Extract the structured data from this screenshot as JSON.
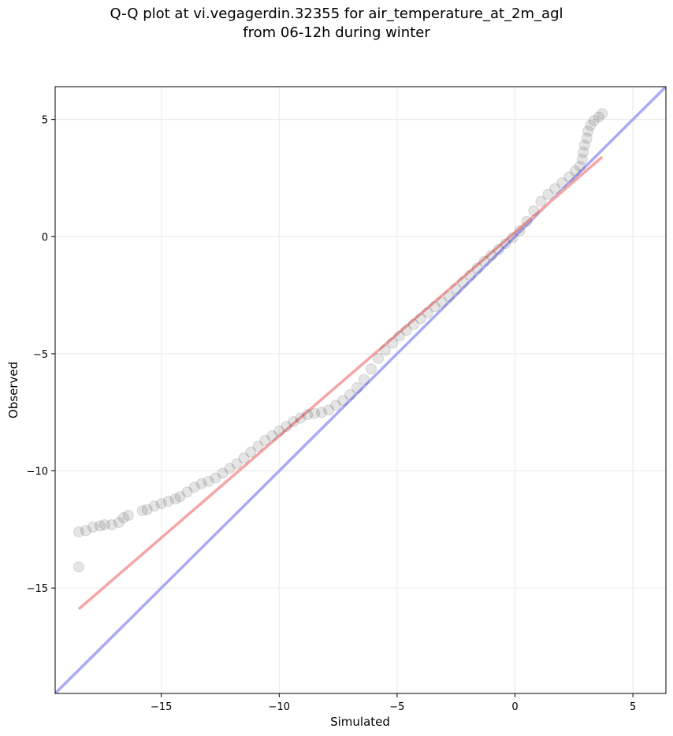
{
  "chart_data": {
    "type": "scatter",
    "title_line1": "Q-Q plot at vi.vegagerdin.32355 for air_temperature_at_2m_agl",
    "title_line2": "from 06-12h during winter",
    "xlabel": "Simulated",
    "ylabel": "Observed",
    "xlim": [
      -19.5,
      6.4
    ],
    "ylim": [
      -19.5,
      6.4
    ],
    "xticks": [
      -15,
      -10,
      -5,
      0,
      5
    ],
    "yticks": [
      5,
      0,
      -5,
      -10,
      -15
    ],
    "xticklabels": [
      "−15",
      "−10",
      "−5",
      "0",
      "5"
    ],
    "yticklabels": [
      "5",
      "0",
      "−5",
      "−10",
      "−15"
    ],
    "grid": true,
    "colors": {
      "points": "#000000",
      "identity_line": "#aaaaf5",
      "fit_line": "#f5a5a5",
      "grid": "#e8e8e8"
    },
    "identity_line": {
      "x": [
        -19.5,
        6.4
      ],
      "y": [
        -19.5,
        6.4
      ]
    },
    "fit_line": {
      "x": [
        -18.5,
        3.7
      ],
      "y": [
        -15.9,
        3.4
      ]
    },
    "series": [
      {
        "points": [
          [
            -18.5,
            -14.1
          ],
          [
            -18.5,
            -12.6
          ],
          [
            -18.2,
            -12.55
          ],
          [
            -17.9,
            -12.4
          ],
          [
            -17.6,
            -12.35
          ],
          [
            -17.4,
            -12.3
          ],
          [
            -17.1,
            -12.3
          ],
          [
            -16.8,
            -12.2
          ],
          [
            -16.6,
            -12.0
          ],
          [
            -16.4,
            -11.9
          ],
          [
            -15.8,
            -11.7
          ],
          [
            -15.6,
            -11.65
          ],
          [
            -15.3,
            -11.5
          ],
          [
            -15.0,
            -11.4
          ],
          [
            -14.7,
            -11.3
          ],
          [
            -14.4,
            -11.2
          ],
          [
            -14.2,
            -11.1
          ],
          [
            -13.9,
            -10.9
          ],
          [
            -13.6,
            -10.7
          ],
          [
            -13.3,
            -10.55
          ],
          [
            -13.0,
            -10.45
          ],
          [
            -12.7,
            -10.3
          ],
          [
            -12.4,
            -10.1
          ],
          [
            -12.1,
            -9.9
          ],
          [
            -11.8,
            -9.7
          ],
          [
            -11.5,
            -9.45
          ],
          [
            -11.2,
            -9.2
          ],
          [
            -10.9,
            -8.95
          ],
          [
            -10.6,
            -8.7
          ],
          [
            -10.3,
            -8.5
          ],
          [
            -10.0,
            -8.3
          ],
          [
            -9.7,
            -8.1
          ],
          [
            -9.4,
            -7.9
          ],
          [
            -9.1,
            -7.75
          ],
          [
            -8.8,
            -7.6
          ],
          [
            -8.5,
            -7.55
          ],
          [
            -8.2,
            -7.5
          ],
          [
            -7.9,
            -7.4
          ],
          [
            -7.6,
            -7.2
          ],
          [
            -7.3,
            -7.0
          ],
          [
            -7.0,
            -6.75
          ],
          [
            -6.7,
            -6.45
          ],
          [
            -6.4,
            -6.1
          ],
          [
            -6.1,
            -5.65
          ],
          [
            -5.8,
            -5.2
          ],
          [
            -5.5,
            -4.85
          ],
          [
            -5.2,
            -4.55
          ],
          [
            -4.9,
            -4.25
          ],
          [
            -4.6,
            -4.0
          ],
          [
            -4.3,
            -3.75
          ],
          [
            -4.0,
            -3.5
          ],
          [
            -3.7,
            -3.25
          ],
          [
            -3.4,
            -3.0
          ],
          [
            -3.1,
            -2.8
          ],
          [
            -2.8,
            -2.55
          ],
          [
            -2.5,
            -2.25
          ],
          [
            -2.2,
            -1.95
          ],
          [
            -1.9,
            -1.65
          ],
          [
            -1.6,
            -1.35
          ],
          [
            -1.3,
            -1.05
          ],
          [
            -1.0,
            -0.8
          ],
          [
            -0.7,
            -0.55
          ],
          [
            -0.4,
            -0.3
          ],
          [
            -0.1,
            -0.05
          ],
          [
            0.2,
            0.25
          ],
          [
            0.5,
            0.65
          ],
          [
            0.8,
            1.1
          ],
          [
            1.1,
            1.5
          ],
          [
            1.4,
            1.8
          ],
          [
            1.7,
            2.05
          ],
          [
            2.0,
            2.3
          ],
          [
            2.3,
            2.55
          ],
          [
            2.55,
            2.8
          ],
          [
            2.75,
            3.0
          ],
          [
            2.85,
            3.3
          ],
          [
            2.9,
            3.6
          ],
          [
            2.95,
            3.9
          ],
          [
            3.05,
            4.2
          ],
          [
            3.1,
            4.5
          ],
          [
            3.2,
            4.75
          ],
          [
            3.35,
            4.95
          ],
          [
            3.55,
            5.1
          ],
          [
            3.7,
            5.25
          ]
        ]
      }
    ]
  }
}
